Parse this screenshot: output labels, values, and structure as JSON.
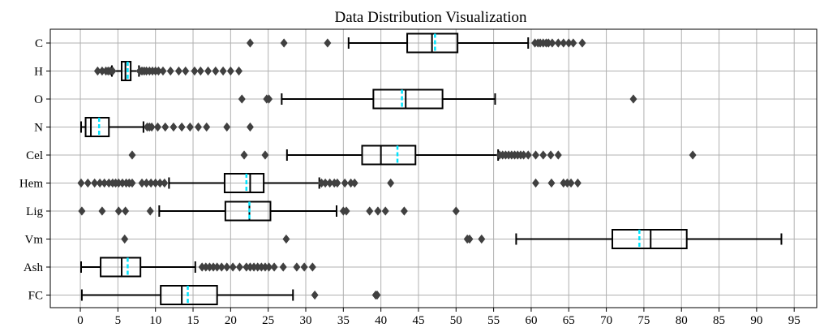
{
  "chart_data": {
    "type": "boxplot",
    "title": "Data Distribution Visualization",
    "xlabel": "",
    "ylabel": "",
    "xlim": [
      -4,
      98
    ],
    "xticks": [
      0,
      5,
      10,
      15,
      20,
      25,
      30,
      35,
      40,
      45,
      50,
      55,
      60,
      65,
      70,
      75,
      80,
      85,
      90,
      95
    ],
    "grid": true,
    "orientation": "horizontal",
    "colors": {
      "mean_line": "#00e5ff",
      "flier": "#404040",
      "grid": "#b0b0b0",
      "box": "#000000"
    },
    "series": [
      {
        "name": "C",
        "whisker_low": 35.7,
        "q1": 43.5,
        "median": 46.8,
        "mean": 47.2,
        "q3": 50.2,
        "whisker_high": 59.6,
        "outliers": [
          22.6,
          27.1,
          32.9,
          60.5,
          60.9,
          61.2,
          61.6,
          62.0,
          62.3,
          62.8,
          63.6,
          64.3,
          65.0,
          65.6,
          66.8
        ]
      },
      {
        "name": "H",
        "whisker_low": 4.2,
        "q1": 5.5,
        "median": 6.0,
        "mean": 6.3,
        "q3": 6.7,
        "whisker_high": 7.8,
        "outliers": [
          2.3,
          2.9,
          3.4,
          3.7,
          4.0,
          4.3,
          7.9,
          8.2,
          8.5,
          8.8,
          9.2,
          9.6,
          10.0,
          10.4,
          11.0,
          12.0,
          13.1,
          14.0,
          15.2,
          16.0,
          17.0,
          18.0,
          19.0,
          20.0,
          21.1
        ]
      },
      {
        "name": "O",
        "whisker_low": 26.8,
        "q1": 39.0,
        "median": 43.3,
        "mean": 42.8,
        "q3": 48.2,
        "whisker_high": 55.2,
        "outliers": [
          21.5,
          24.8,
          25.1,
          73.6
        ]
      },
      {
        "name": "N",
        "whisker_low": 0.1,
        "q1": 0.7,
        "median": 1.4,
        "mean": 2.5,
        "q3": 3.8,
        "whisker_high": 8.4,
        "outliers": [
          8.9,
          9.2,
          9.5,
          10.3,
          11.3,
          12.4,
          13.5,
          14.6,
          15.7,
          16.8,
          19.5,
          22.6
        ]
      },
      {
        "name": "Cel",
        "whisker_low": 27.5,
        "q1": 37.5,
        "median": 40.0,
        "mean": 42.2,
        "q3": 44.6,
        "whisker_high": 55.6,
        "outliers": [
          6.9,
          21.8,
          24.6,
          55.8,
          56.2,
          56.6,
          57.0,
          57.4,
          57.8,
          58.2,
          58.6,
          59.0,
          59.6,
          60.6,
          61.6,
          62.6,
          63.6,
          81.5
        ]
      },
      {
        "name": "Hem",
        "whisker_low": 11.8,
        "q1": 19.2,
        "median": 22.6,
        "mean": 22.1,
        "q3": 24.4,
        "whisker_high": 31.8,
        "outliers": [
          0.1,
          1.0,
          1.9,
          2.6,
          3.2,
          3.8,
          4.3,
          4.7,
          5.1,
          5.6,
          6.1,
          6.5,
          6.9,
          8.2,
          8.8,
          9.4,
          10.0,
          10.6,
          11.2,
          32.1,
          32.6,
          33.2,
          33.8,
          34.2,
          35.2,
          36.0,
          36.5,
          41.3,
          60.6,
          62.7,
          64.3,
          64.8,
          65.3,
          66.2
        ]
      },
      {
        "name": "Lig",
        "whisker_low": 10.5,
        "q1": 19.3,
        "median": 22.5,
        "mean": 22.5,
        "q3": 25.3,
        "whisker_high": 34.1,
        "outliers": [
          0.2,
          2.9,
          5.1,
          6.0,
          9.3,
          35.0,
          35.4,
          38.5,
          39.6,
          40.6,
          43.1,
          50.0
        ]
      },
      {
        "name": "Vm",
        "whisker_low": 58.0,
        "q1": 70.8,
        "median": 75.9,
        "mean": 74.4,
        "q3": 80.7,
        "whisker_high": 93.3,
        "outliers": [
          5.9,
          27.4,
          51.5,
          51.8,
          53.4
        ]
      },
      {
        "name": "Ash",
        "whisker_low": 0.1,
        "q1": 2.7,
        "median": 5.5,
        "mean": 6.3,
        "q3": 8.0,
        "whisker_high": 15.3,
        "outliers": [
          16.2,
          16.7,
          17.2,
          17.7,
          18.2,
          18.8,
          19.5,
          20.3,
          21.2,
          22.1,
          22.6,
          23.1,
          23.6,
          24.1,
          24.6,
          25.1,
          25.8,
          27.0,
          28.8,
          29.8,
          30.9
        ]
      },
      {
        "name": "FC",
        "whisker_low": 0.2,
        "q1": 10.7,
        "median": 13.5,
        "mean": 14.3,
        "q3": 18.2,
        "whisker_high": 28.3,
        "outliers": [
          31.2,
          39.3,
          39.5
        ]
      }
    ]
  }
}
